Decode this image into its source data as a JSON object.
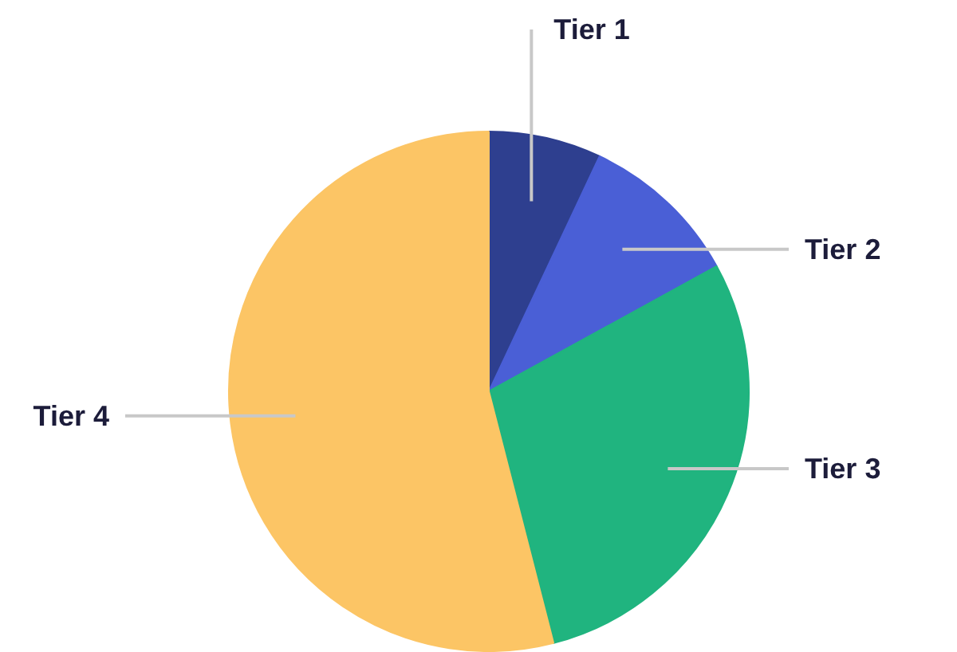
{
  "chart_data": {
    "type": "pie",
    "categories": [
      "Tier 1",
      "Tier 2",
      "Tier 3",
      "Tier 4"
    ],
    "values": [
      7,
      10,
      29,
      54
    ],
    "colors": [
      "#2e3f8f",
      "#4a5fd6",
      "#20b47f",
      "#fcc565"
    ]
  }
}
